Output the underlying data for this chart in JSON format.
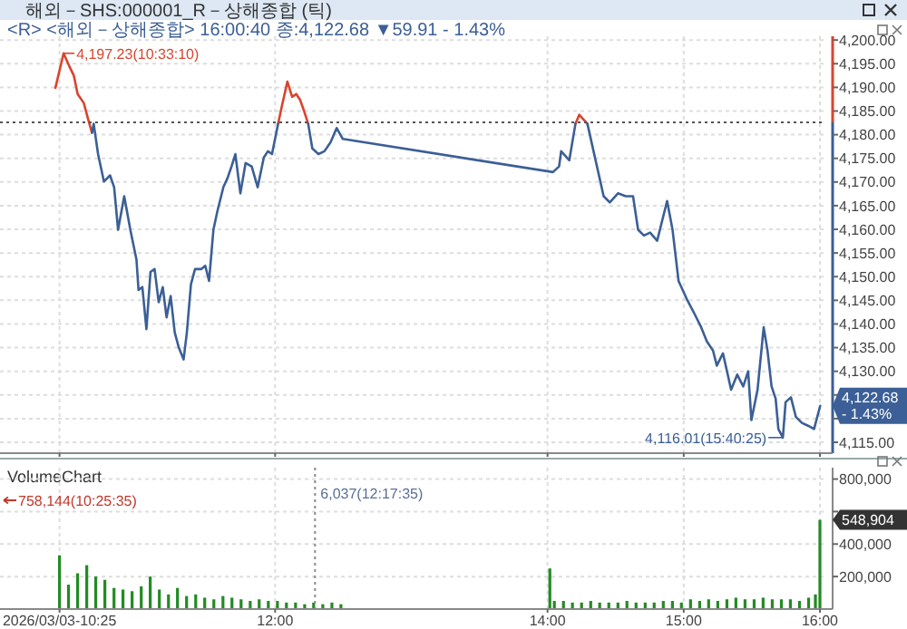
{
  "chart_data": [
    {
      "type": "line",
      "title": "해외－SHS:000001_R－상해종합 (틱)",
      "subtitle": "<R> <해외－상해종합> 16:00:40 종:4,122.68 ▼59.91  - 1.43%",
      "x": [
        10.387,
        10.447,
        10.49,
        10.522,
        10.55,
        10.595,
        10.625,
        10.655,
        10.668,
        10.7,
        10.743,
        10.788,
        10.818,
        10.847,
        10.892,
        10.937,
        10.982,
        10.997,
        11.025,
        11.055,
        11.085,
        11.115,
        11.145,
        11.175,
        11.203,
        11.233,
        11.263,
        11.293,
        11.328,
        11.352,
        11.382,
        11.412,
        11.457,
        11.487,
        11.515,
        11.547,
        11.575,
        11.62,
        11.65,
        11.68,
        11.708,
        11.745,
        11.783,
        11.828,
        11.872,
        11.917,
        11.947,
        11.977,
        12.022,
        12.05,
        12.09,
        12.125,
        12.155,
        12.183,
        12.215,
        12.243,
        12.273,
        12.318,
        12.362,
        12.407,
        12.452,
        12.497,
        14.04,
        14.085,
        14.1,
        14.16,
        14.205,
        14.233,
        14.293,
        14.338,
        14.412,
        14.457,
        14.517,
        14.575,
        14.628,
        14.665,
        14.708,
        14.753,
        14.805,
        14.878,
        14.918,
        14.962,
        15.022,
        15.08,
        15.125,
        15.17,
        15.215,
        15.243,
        15.288,
        15.348,
        15.393,
        15.437,
        15.473,
        15.497,
        15.542,
        15.587,
        15.615,
        15.645,
        15.675,
        15.695,
        15.728,
        15.748,
        15.787,
        15.823,
        15.868,
        15.913,
        15.957,
        16.002
      ],
      "series": [
        {
          "color": "#d9442e",
          "values": [
            4189.9,
            4197.2,
            4194.4,
            4192.5,
            4188.6,
            4186.7,
            4183.5,
            4180.4,
            null,
            null,
            null,
            null,
            null,
            null,
            null,
            null,
            null,
            null,
            null,
            null,
            null,
            null,
            null,
            null,
            null,
            null,
            null,
            null,
            null,
            null,
            null,
            null,
            null,
            null,
            null,
            null,
            null,
            null,
            null,
            null,
            null,
            null,
            null,
            null,
            null,
            null,
            null,
            null,
            4182.3,
            4186.1,
            4191.2,
            4188.0,
            4188.6,
            4187.4,
            4184.8,
            4182.3,
            null,
            null,
            null,
            null,
            null,
            null,
            null,
            null,
            null,
            null,
            4182.3,
            4184.2,
            4182.3,
            null,
            null,
            null,
            null,
            null,
            null,
            null,
            null,
            null,
            null,
            null,
            null,
            null,
            null,
            null,
            null,
            null,
            null,
            null,
            null,
            null,
            null,
            null,
            null,
            null,
            null,
            null,
            null,
            null,
            null,
            null,
            null,
            null,
            null,
            null,
            null,
            null,
            null,
            null
          ]
        },
        {
          "color": "#3b5f96",
          "values": [
            null,
            null,
            null,
            null,
            null,
            null,
            null,
            4180.4,
            4182.3,
            4175.9,
            4170.1,
            4171.4,
            4168.9,
            4159.9,
            4167.0,
            4159.9,
            4153.6,
            4147.2,
            4147.8,
            4138.9,
            4151.0,
            4151.6,
            4144.6,
            4147.8,
            4141.4,
            4145.9,
            4138.2,
            4135.0,
            4132.5,
            4138.2,
            4148.4,
            4151.6,
            4151.6,
            4152.3,
            4149.1,
            4159.9,
            4163.7,
            4168.9,
            4170.8,
            4173.3,
            4175.9,
            4167.6,
            4174.0,
            4173.3,
            4168.9,
            4175.2,
            4176.5,
            4175.9,
            4182.3,
            null,
            null,
            null,
            null,
            null,
            null,
            4182.3,
            4177.1,
            4175.9,
            4176.5,
            4178.4,
            4181.4,
            4179.1,
            4172.1,
            4173.3,
            4176.5,
            4174.6,
            4182.3,
            null,
            4182.3,
            4176.5,
            4167.0,
            4165.7,
            4167.6,
            4167.0,
            4167.0,
            4159.9,
            4158.7,
            4159.3,
            4157.6,
            4166.0,
            4159.9,
            4149.1,
            4145.3,
            4142.1,
            4139.5,
            4136.3,
            4134.4,
            4131.2,
            4133.8,
            4126.1,
            4129.3,
            4126.8,
            4130.0,
            4119.7,
            4126.1,
            4139.3,
            4134.4,
            4126.8,
            4124.2,
            4117.8,
            4116.0,
            4123.5,
            4124.5,
            4120.4,
            4119.1,
            4118.5,
            4117.8,
            4122.7
          ]
        }
      ],
      "xlim": [
        9.98,
        16.04
      ],
      "xticks": [
        {
          "value": 10.417,
          "label": null
        },
        {
          "value": 12,
          "label": null
        },
        {
          "value": 14,
          "label": null
        },
        {
          "value": 15,
          "label": null
        },
        {
          "value": 16,
          "label": null
        }
      ],
      "ylim": [
        4112.7,
        4200.8
      ],
      "yticks": [
        {
          "value": 4115,
          "label": "4,115.00"
        },
        {
          "value": 4120,
          "label": null
        },
        {
          "value": 4125,
          "label": null
        },
        {
          "value": 4130,
          "label": "4,130.00"
        },
        {
          "value": 4135,
          "label": "4,135.00"
        },
        {
          "value": 4140,
          "label": "4,140.00"
        },
        {
          "value": 4145,
          "label": "4,145.00"
        },
        {
          "value": 4150,
          "label": "4,150.00"
        },
        {
          "value": 4155,
          "label": "4,155.00"
        },
        {
          "value": 4160,
          "label": "4,160.00"
        },
        {
          "value": 4165,
          "label": "4,165.00"
        },
        {
          "value": 4170,
          "label": "4,170.00"
        },
        {
          "value": 4175,
          "label": "4,175.00"
        },
        {
          "value": 4180,
          "label": "4,180.00"
        },
        {
          "value": 4185,
          "label": "4,185.00"
        },
        {
          "value": 4190,
          "label": "4,190.00"
        },
        {
          "value": 4195,
          "label": "4,195.00"
        },
        {
          "value": 4200,
          "label": "4,200.00"
        }
      ],
      "tick_labels": "y",
      "grid": true,
      "ref_lines": [
        {
          "axis": "y",
          "value": 4182.59,
          "color": "#555555",
          "line_style": "dotted"
        }
      ],
      "annotations": [
        {
          "text": "4,197.23(10:33:10)",
          "x": 10.447,
          "y": 4197.2
        },
        {
          "text": "4,116.01(15:40:25)",
          "x": 15.728,
          "y": 4116.0
        },
        {
          "text": "4,122.68\n- 1.43%",
          "x": 16.002,
          "y": 4122.7
        }
      ]
    },
    {
      "type": "bar",
      "title": "VolumeChart",
      "color": "#228b22",
      "x": [
        10.417,
        10.483,
        10.55,
        10.617,
        10.683,
        10.75,
        10.817,
        10.883,
        10.95,
        11.017,
        11.083,
        11.15,
        11.217,
        11.283,
        11.35,
        11.417,
        11.483,
        11.55,
        11.617,
        11.683,
        11.75,
        11.817,
        11.883,
        11.95,
        12.017,
        12.083,
        12.15,
        12.217,
        12.283,
        12.35,
        12.417,
        12.483,
        14.017,
        14.05,
        14.117,
        14.183,
        14.25,
        14.317,
        14.383,
        14.45,
        14.517,
        14.583,
        14.65,
        14.717,
        14.783,
        14.85,
        14.917,
        14.983,
        15.05,
        15.117,
        15.183,
        15.25,
        15.317,
        15.383,
        15.45,
        15.517,
        15.583,
        15.65,
        15.717,
        15.783,
        15.85,
        15.917,
        15.967,
        16.0
      ],
      "values": [
        330000,
        150000,
        220000,
        270000,
        200000,
        180000,
        130000,
        120000,
        110000,
        140000,
        200000,
        120000,
        90000,
        130000,
        80000,
        90000,
        70000,
        60000,
        80000,
        70000,
        60000,
        50000,
        60000,
        50000,
        50000,
        40000,
        40000,
        30000,
        40000,
        30000,
        40000,
        30000,
        250000,
        50000,
        50000,
        40000,
        40000,
        50000,
        40000,
        40000,
        40000,
        50000,
        40000,
        40000,
        40000,
        50000,
        50000,
        40000,
        60000,
        50000,
        60000,
        50000,
        60000,
        70000,
        60000,
        60000,
        70000,
        60000,
        60000,
        60000,
        50000,
        70000,
        90000,
        548904
      ],
      "xlim": [
        9.98,
        16.04
      ],
      "xticks": [
        {
          "value": 10.417,
          "label": "2026/03/03-10:25"
        },
        {
          "value": 12,
          "label": "12:00"
        },
        {
          "value": 14,
          "label": "14:00"
        },
        {
          "value": 15,
          "label": "15:00"
        },
        {
          "value": 16,
          "label": "16:00"
        }
      ],
      "ylim": [
        0,
        870000
      ],
      "yticks": [
        {
          "value": 200000,
          "label": "200,000"
        },
        {
          "value": 400000,
          "label": "400,000"
        },
        {
          "value": 600000,
          "label": null
        },
        {
          "value": 800000,
          "label": "800,000"
        }
      ],
      "grid": true,
      "ref_lines": [
        {
          "axis": "x",
          "value": 12.293,
          "label": "6,037(12:17:35)",
          "color": "#8a8a8a",
          "line_style": "dotted"
        }
      ],
      "annotations": [
        "758,144(10:25:35)",
        {
          "text": "548,904",
          "x": 16.0,
          "y": 548904
        }
      ]
    }
  ]
}
